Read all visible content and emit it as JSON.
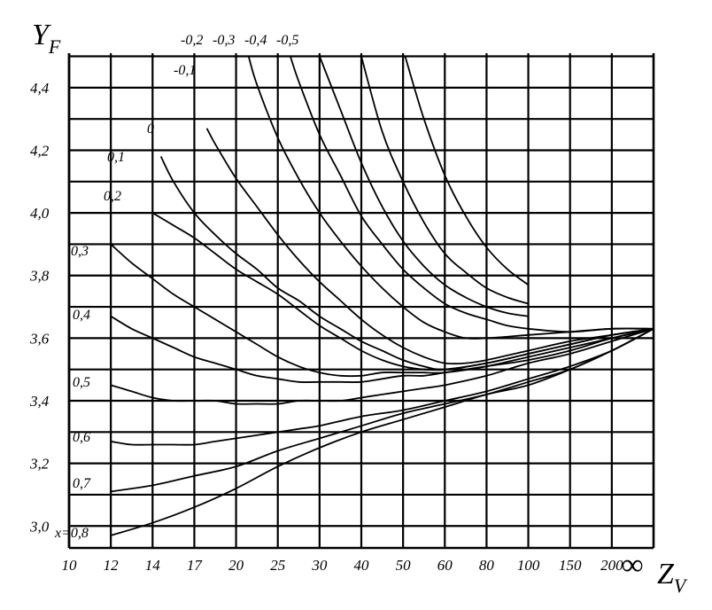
{
  "chart_data": {
    "type": "line",
    "title": "",
    "ylabel": "Y",
    "ylabel_sub": "F",
    "xlabel": "Z",
    "xlabel_sub": "V",
    "x_categories": [
      "10",
      "12",
      "14",
      "17",
      "20",
      "25",
      "30",
      "40",
      "50",
      "60",
      "80",
      "100",
      "150",
      "200",
      "∞"
    ],
    "x_tick_labels": [
      "10",
      "12",
      "14",
      "17",
      "20",
      "25",
      "30",
      "40",
      "50",
      "60",
      "80",
      "100",
      "150",
      "200"
    ],
    "x_infinity_label": "∞",
    "y_tick_labels": [
      {
        "value": 3.0,
        "label": "3,0"
      },
      {
        "value": 3.2,
        "label": "3,2"
      },
      {
        "value": 3.4,
        "label": "3,4"
      },
      {
        "value": 3.6,
        "label": "3,6"
      },
      {
        "value": 3.8,
        "label": "3,8"
      },
      {
        "value": 4.0,
        "label": "4,0"
      },
      {
        "value": 4.2,
        "label": "4,2"
      },
      {
        "value": 4.4,
        "label": "4,4"
      }
    ],
    "ylim": [
      2.93,
      4.51
    ],
    "y_grid_step": 0.1,
    "grid": true,
    "series": [
      {
        "name": "-0,5",
        "label_text": "-0,5",
        "points": [
          [
            8.05,
            4.5
          ],
          [
            8.5,
            4.3
          ],
          [
            9,
            4.12
          ],
          [
            9.5,
            3.99
          ],
          [
            10,
            3.89
          ],
          [
            10.5,
            3.82
          ],
          [
            11,
            3.77
          ]
        ]
      },
      {
        "name": "-0,4",
        "label_text": "-0,4",
        "points": [
          [
            7.0,
            4.5
          ],
          [
            7.5,
            4.26
          ],
          [
            8,
            4.1
          ],
          [
            8.5,
            3.97
          ],
          [
            9,
            3.87
          ],
          [
            9.5,
            3.81
          ],
          [
            10,
            3.76
          ],
          [
            10.5,
            3.73
          ],
          [
            11,
            3.71
          ]
        ]
      },
      {
        "name": "-0,3",
        "label_text": "-0,3",
        "points": [
          [
            6.0,
            4.5
          ],
          [
            6.5,
            4.33
          ],
          [
            7,
            4.16
          ],
          [
            7.5,
            4.02
          ],
          [
            8,
            3.91
          ],
          [
            8.5,
            3.83
          ],
          [
            9,
            3.77
          ],
          [
            9.5,
            3.73
          ],
          [
            10,
            3.7
          ],
          [
            10.5,
            3.68
          ],
          [
            11,
            3.67
          ]
        ]
      },
      {
        "name": "-0,2",
        "label_text": "-0,2",
        "points": [
          [
            5.3,
            4.5
          ],
          [
            5.5,
            4.42
          ],
          [
            6,
            4.25
          ],
          [
            6.5,
            4.12
          ],
          [
            7,
            3.99
          ],
          [
            7.5,
            3.9
          ],
          [
            8,
            3.82
          ],
          [
            8.5,
            3.76
          ],
          [
            9,
            3.71
          ],
          [
            9.5,
            3.68
          ],
          [
            10,
            3.66
          ],
          [
            10.5,
            3.64
          ],
          [
            11,
            3.63
          ],
          [
            12,
            3.62
          ],
          [
            13,
            3.63
          ],
          [
            14,
            3.63
          ]
        ]
      },
      {
        "name": "-0,1",
        "label_text": "-0,1",
        "points": [
          [
            4.3,
            4.5
          ],
          [
            4.5,
            4.41
          ],
          [
            5,
            4.24
          ],
          [
            5.5,
            4.11
          ],
          [
            6,
            4.0
          ],
          [
            6.5,
            3.91
          ],
          [
            7,
            3.83
          ],
          [
            7.5,
            3.76
          ],
          [
            8,
            3.7
          ],
          [
            8.5,
            3.65
          ],
          [
            9,
            3.62
          ],
          [
            9.5,
            3.6
          ],
          [
            10,
            3.6
          ],
          [
            11,
            3.61
          ],
          [
            12,
            3.62
          ],
          [
            13,
            3.63
          ],
          [
            14,
            3.63
          ]
        ]
      },
      {
        "name": "0",
        "label_text": "0",
        "points": [
          [
            3.3,
            4.27
          ],
          [
            3.5,
            4.22
          ],
          [
            4,
            4.11
          ],
          [
            4.5,
            4.02
          ],
          [
            5,
            3.93
          ],
          [
            5.5,
            3.85
          ],
          [
            6,
            3.78
          ],
          [
            6.5,
            3.72
          ],
          [
            7,
            3.66
          ],
          [
            7.5,
            3.61
          ],
          [
            8,
            3.57
          ],
          [
            8.5,
            3.54
          ],
          [
            9,
            3.52
          ],
          [
            9.5,
            3.52
          ],
          [
            10,
            3.53
          ],
          [
            11,
            3.56
          ],
          [
            12,
            3.59
          ],
          [
            13,
            3.61
          ],
          [
            14,
            3.63
          ]
        ]
      },
      {
        "name": "0,1",
        "label_text": "0,1",
        "points": [
          [
            2.2,
            4.18
          ],
          [
            2.5,
            4.1
          ],
          [
            3,
            4.0
          ],
          [
            3.5,
            3.93
          ],
          [
            4,
            3.87
          ],
          [
            4.5,
            3.82
          ],
          [
            5,
            3.76
          ],
          [
            5.5,
            3.72
          ],
          [
            6,
            3.67
          ],
          [
            6.5,
            3.63
          ],
          [
            7,
            3.59
          ],
          [
            7.5,
            3.56
          ],
          [
            8,
            3.53
          ],
          [
            8.5,
            3.51
          ],
          [
            9,
            3.5
          ],
          [
            10,
            3.52
          ],
          [
            11,
            3.55
          ],
          [
            12,
            3.58
          ],
          [
            13,
            3.61
          ],
          [
            14,
            3.63
          ]
        ]
      },
      {
        "name": "0,2",
        "label_text": "0,2",
        "points": [
          [
            2.0,
            4.0
          ],
          [
            2.5,
            3.96
          ],
          [
            3,
            3.92
          ],
          [
            3.5,
            3.87
          ],
          [
            4,
            3.82
          ],
          [
            4.5,
            3.78
          ],
          [
            5,
            3.74
          ],
          [
            5.5,
            3.69
          ],
          [
            6,
            3.64
          ],
          [
            6.5,
            3.6
          ],
          [
            7,
            3.56
          ],
          [
            7.5,
            3.53
          ],
          [
            8,
            3.51
          ],
          [
            8.5,
            3.5
          ],
          [
            9,
            3.5
          ],
          [
            10,
            3.52
          ],
          [
            11,
            3.55
          ],
          [
            12,
            3.58
          ],
          [
            13,
            3.61
          ],
          [
            14,
            3.63
          ]
        ]
      },
      {
        "name": "0,3",
        "label_text": "0,3",
        "points": [
          [
            1.0,
            3.9
          ],
          [
            1.5,
            3.84
          ],
          [
            2,
            3.79
          ],
          [
            2.5,
            3.74
          ],
          [
            3,
            3.7
          ],
          [
            3.5,
            3.66
          ],
          [
            4,
            3.62
          ],
          [
            4.5,
            3.58
          ],
          [
            5,
            3.54
          ],
          [
            5.5,
            3.51
          ],
          [
            6,
            3.49
          ],
          [
            6.5,
            3.48
          ],
          [
            7,
            3.48
          ],
          [
            7.5,
            3.49
          ],
          [
            8,
            3.49
          ],
          [
            8.5,
            3.49
          ],
          [
            9,
            3.49
          ],
          [
            10,
            3.51
          ],
          [
            11,
            3.54
          ],
          [
            12,
            3.57
          ],
          [
            13,
            3.6
          ],
          [
            14,
            3.63
          ]
        ]
      },
      {
        "name": "0,4",
        "label_text": "0,4",
        "points": [
          [
            1.0,
            3.67
          ],
          [
            1.5,
            3.63
          ],
          [
            2,
            3.6
          ],
          [
            2.5,
            3.57
          ],
          [
            3,
            3.54
          ],
          [
            3.5,
            3.52
          ],
          [
            4,
            3.5
          ],
          [
            4.5,
            3.48
          ],
          [
            5,
            3.47
          ],
          [
            5.5,
            3.46
          ],
          [
            6,
            3.46
          ],
          [
            6.5,
            3.46
          ],
          [
            7,
            3.46
          ],
          [
            7.5,
            3.47
          ],
          [
            8,
            3.48
          ],
          [
            8.5,
            3.48
          ],
          [
            9,
            3.49
          ],
          [
            10,
            3.51
          ],
          [
            11,
            3.53
          ],
          [
            12,
            3.56
          ],
          [
            13,
            3.6
          ],
          [
            14,
            3.63
          ]
        ]
      },
      {
        "name": "0,5",
        "label_text": "0,5",
        "points": [
          [
            1.0,
            3.45
          ],
          [
            1.5,
            3.43
          ],
          [
            2,
            3.41
          ],
          [
            2.5,
            3.4
          ],
          [
            3,
            3.4
          ],
          [
            3.5,
            3.4
          ],
          [
            4,
            3.39
          ],
          [
            4.5,
            3.39
          ],
          [
            5,
            3.39
          ],
          [
            5.5,
            3.4
          ],
          [
            6,
            3.4
          ],
          [
            6.5,
            3.4
          ],
          [
            7,
            3.41
          ],
          [
            7.5,
            3.42
          ],
          [
            8,
            3.43
          ],
          [
            8.5,
            3.44
          ],
          [
            9,
            3.45
          ],
          [
            10,
            3.48
          ],
          [
            11,
            3.52
          ],
          [
            12,
            3.55
          ],
          [
            13,
            3.59
          ],
          [
            14,
            3.63
          ]
        ]
      },
      {
        "name": "0,6",
        "label_text": "0,6",
        "points": [
          [
            1.0,
            3.27
          ],
          [
            1.5,
            3.26
          ],
          [
            2,
            3.26
          ],
          [
            2.5,
            3.26
          ],
          [
            3,
            3.26
          ],
          [
            3.5,
            3.27
          ],
          [
            4,
            3.28
          ],
          [
            4.5,
            3.29
          ],
          [
            5,
            3.3
          ],
          [
            5.5,
            3.31
          ],
          [
            6,
            3.32
          ],
          [
            7,
            3.35
          ],
          [
            8,
            3.37
          ],
          [
            9,
            3.4
          ],
          [
            10,
            3.43
          ],
          [
            11,
            3.47
          ],
          [
            12,
            3.51
          ],
          [
            13,
            3.56
          ],
          [
            14,
            3.63
          ]
        ]
      },
      {
        "name": "0,7",
        "label_text": "0,7",
        "points": [
          [
            1.0,
            3.11
          ],
          [
            2,
            3.13
          ],
          [
            3,
            3.16
          ],
          [
            4,
            3.19
          ],
          [
            5,
            3.24
          ],
          [
            6,
            3.28
          ],
          [
            7,
            3.32
          ],
          [
            8,
            3.36
          ],
          [
            9,
            3.39
          ],
          [
            10,
            3.42
          ],
          [
            11,
            3.46
          ],
          [
            12,
            3.5
          ],
          [
            13,
            3.56
          ],
          [
            14,
            3.63
          ]
        ]
      },
      {
        "name": "x=0,8",
        "label_text": "x=0,8",
        "points": [
          [
            1.0,
            2.97
          ],
          [
            2,
            3.01
          ],
          [
            3,
            3.06
          ],
          [
            4,
            3.12
          ],
          [
            5,
            3.19
          ],
          [
            6,
            3.25
          ],
          [
            7,
            3.3
          ],
          [
            8,
            3.34
          ],
          [
            9,
            3.38
          ],
          [
            10,
            3.42
          ],
          [
            11,
            3.45
          ],
          [
            12,
            3.5
          ],
          [
            13,
            3.56
          ],
          [
            14,
            3.63
          ]
        ]
      }
    ]
  }
}
